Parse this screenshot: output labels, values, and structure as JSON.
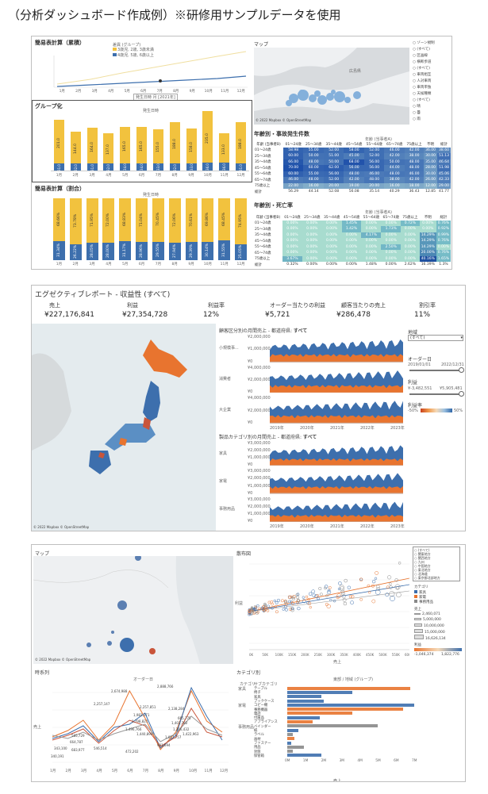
{
  "page": {
    "title": "（分析ダッシュボード作成例）※研修用サンプルデータを使用"
  },
  "p1": {
    "line_title": "簡易表計算（累積）",
    "line_legend_title": "差異 (グループ)",
    "line_legend": [
      "3歳児, 2歳, 3歳未満",
      "4歳児, 5歳, 6歳以上"
    ],
    "line_months": [
      "1月",
      "2月",
      "3月",
      "4月",
      "5月",
      "6月",
      "7月",
      "8月",
      "9月",
      "10月",
      "11月",
      "12月"
    ],
    "line_xlabel": "発生日時 月 [2021年]",
    "group_title": "グループ化",
    "group_axis": "発生日時",
    "bar_top": [
      201.0,
      144.0,
      164.0,
      137.0,
      165.0,
      165.0,
      155.0,
      188.0,
      158.0,
      235.0,
      133.0,
      188.0
    ],
    "bar_bottom": [
      31.0,
      32.0,
      31.0,
      32.0,
      34.0,
      34.0,
      33.0,
      32.0,
      33.0,
      36.0,
      36.0,
      31.0
    ],
    "pct_title": "簡易表計算（割合）",
    "pct_axis": "発生日時",
    "pct_top": [
      "68.66%",
      "73.78%",
      "71.95%",
      "72.00%",
      "68.83%",
      "71.04%",
      "70.45%",
      "72.06%",
      "70.61%",
      "69.86%",
      "68.45%",
      "74.95%"
    ],
    "pct_bottom": [
      "31.34%",
      "26.22%",
      "28.05%",
      "28.00%",
      "31.17%",
      "28.96%",
      "29.55%",
      "27.94%",
      "29.39%",
      "30.14%",
      "31.55%",
      "25.05%"
    ],
    "map_title": "マップ",
    "map_credit": "© 2022 Mapbox © OpenStreetMap",
    "map_place": "広島県",
    "side_items": [
      "ゾーン規制",
      "(すべて)",
      "区画線",
      "横断歩道",
      "(すべて)",
      "車両相互",
      "人対車両",
      "車両単独",
      "天候種類",
      "(すべて)",
      "晴",
      "曇",
      "雨"
    ],
    "table1_title": "年齢別・事故発生件数",
    "table2_title": "年齢別・死亡率",
    "table_colgroup": "年齢 (当事者A)",
    "table_cols": [
      "年齢 (当事者B)",
      "01～24歳",
      "25～34歳",
      "35～44歳",
      "45～54歳",
      "55～64歳",
      "65～74歳",
      "75歳以上",
      "不明",
      "総計"
    ],
    "table_rows": [
      "01～24歳",
      "25～34歳",
      "35～44歳",
      "45～54歳",
      "55～64歳",
      "65～74歳",
      "75歳以上",
      "総計"
    ],
    "table1": [
      [
        "58.98",
        "55.00",
        "52.00",
        "58.00",
        "52.00",
        "46.00",
        "42.00",
        "36.00",
        "38.60"
      ],
      [
        "60.00",
        "50.00",
        "51.00",
        "45.00",
        "52.00",
        "42.00",
        "38.00",
        "30.00",
        "51.13"
      ],
      [
        "66.00",
        "48.00",
        "50.00",
        "68.00",
        "56.00",
        "50.00",
        "48.00",
        "35.00",
        "46.64"
      ],
      [
        "70.00",
        "60.00",
        "62.00",
        "56.00",
        "56.00",
        "44.00",
        "48.00",
        "28.00",
        "51.98"
      ],
      [
        "60.00",
        "55.00",
        "56.00",
        "48.00",
        "46.00",
        "48.00",
        "46.00",
        "30.00",
        "45.06"
      ],
      [
        "46.00",
        "48.00",
        "52.00",
        "42.00",
        "48.00",
        "38.00",
        "42.00",
        "26.00",
        "42.33"
      ],
      [
        "22.00",
        "16.00",
        "20.00",
        "19.00",
        "20.00",
        "16.00",
        "18.00",
        "12.00",
        "29.00"
      ],
      [
        "56.29",
        "44.14",
        "52.08",
        "56.08",
        "35.14",
        "40.29",
        "36.43",
        "12.85",
        "41.77"
      ]
    ],
    "table2": [
      [
        "0.00%",
        "0.00%",
        "0.00%",
        "1.45%",
        "0.00%",
        "0.00%",
        "0.72%",
        "0.00%",
        "0.76%"
      ],
      [
        "0.00%",
        "0.00%",
        "0.00%",
        "1.42%",
        "0.00%",
        "1.73%",
        "0.00%",
        "0.00%",
        "0.92%"
      ],
      [
        "0.00%",
        "0.00%",
        "0.00%",
        "0.00%",
        "4.17%",
        "0.00%",
        "0.00%",
        "14.29%",
        "0.99%"
      ],
      [
        "0.00%",
        "0.00%",
        "0.00%",
        "0.00%",
        "0.00%",
        "0.00%",
        "0.00%",
        "14.29%",
        "0.76%"
      ],
      [
        "0.00%",
        "0.00%",
        "0.00%",
        "0.00%",
        "0.00%",
        "2.50%",
        "0.00%",
        "14.29%",
        "0.00%"
      ],
      [
        "0.00%",
        "0.00%",
        "0.00%",
        "0.00%",
        "0.00%",
        "0.00%",
        "0.00%",
        "20.00%",
        "0.76%"
      ],
      [
        "3.67%",
        "0.00%",
        "0.00%",
        "0.00%",
        "0.00%",
        "0.00%",
        "0.00%",
        "40.16%",
        "1.65%"
      ],
      [
        "0.32%",
        "0.00%",
        "0.00%",
        "0.00%",
        "1.48%",
        "0.00%",
        "2.62%",
        "16.39%",
        "1.3%"
      ]
    ]
  },
  "p2": {
    "title": "エグゼクティブレポート - 収益性 (すべて)",
    "kpis": [
      {
        "label": "売上",
        "value": "¥227,176,841"
      },
      {
        "label": "利益",
        "value": "¥27,354,728"
      },
      {
        "label": "利益率",
        "value": "12%"
      },
      {
        "label": "オーダー当たりの利益",
        "value": "¥5,721"
      },
      {
        "label": "顧客当たりの売上",
        "value": "¥286,478"
      },
      {
        "label": "割引率",
        "value": "11%"
      }
    ],
    "seg_title_prefix": "顧客区分別の月間売上 - 都道府県: ",
    "cat_title_prefix": "製品カテゴリ別の月間売上 - 都道府県: ",
    "selected": "すべて",
    "segs": [
      "小規模事...",
      "消費者",
      "大企業"
    ],
    "cats": [
      "家具",
      "家電",
      "事務用品"
    ],
    "seg_ticks": [
      [
        "¥2,000,000",
        "¥1,000,000",
        "¥0"
      ],
      [
        "¥4,000,000",
        "¥2,000,000",
        "¥0"
      ],
      [
        "¥4,000,000",
        "¥2,000,000",
        "¥0"
      ]
    ],
    "cat_ticks": [
      [
        "¥3,000,000",
        "¥2,000,000",
        "¥1,000,000",
        "¥0"
      ],
      [
        "¥3,000,000",
        "¥2,000,000",
        "¥1,000,000",
        "¥0"
      ],
      [
        "¥3,000,000",
        "¥2,000,000",
        "¥1,000,000",
        "¥0"
      ]
    ],
    "years": [
      "2019年",
      "2020年",
      "2021年",
      "2022年",
      "2023年"
    ],
    "side_region": "地域",
    "side_region_val": "(すべて)",
    "side_order": "オーダー日",
    "side_date_from": "2019/01/01",
    "side_date_to": "2022/12/31",
    "side_profit": "利益",
    "side_profit_from": "¥-3,482,551",
    "side_profit_to": "¥5,905,481",
    "side_margin": "利益率",
    "side_margin_from": "-50%",
    "side_margin_to": "50%",
    "map_credit": "© 2022 Mapbox © OpenStreetMap"
  },
  "p3": {
    "map_title": "マップ",
    "map_credit": "© 2022 Mapbox © OpenStreetMap",
    "scatter_title": "散布図",
    "scatter_xlabel": "売上",
    "scatter_ylabel": "利益",
    "scatter_xticks": [
      "0K",
      "50K",
      "100K",
      "150K",
      "200K",
      "250K",
      "300K",
      "350K",
      "400K",
      "450K",
      "500K",
      "550K",
      "600K"
    ],
    "legend_items": [
      "(すべて)",
      "関東地方",
      "関西地方",
      "九州",
      "中国地方",
      "東北地方",
      "北海道",
      "東京都北部地方"
    ],
    "legend_cat_title": "カテゴリ",
    "legend_cats": [
      "家具",
      "家電",
      "事務用品"
    ],
    "legend_size_title": "売上",
    "legend_sizes": [
      "2,460,071",
      "5,000,000",
      "10,000,000",
      "15,000,000",
      "16,626,134"
    ],
    "legend_profit_title": "利益",
    "legend_profit_from": "-1,046,374",
    "legend_profit_to": "1,822,776",
    "ts_title": "時系列",
    "ts_axis": "オーダー日",
    "ts_ylabel": "売上",
    "ts_xticks": [
      "1月",
      "2月",
      "3月",
      "4月",
      "5月",
      "6月",
      "7月",
      "8月",
      "9月",
      "10月",
      "11月",
      "12月"
    ],
    "ts_labels": [
      "2,674,988",
      "2,888,766",
      "2,257,147",
      "2,257,851",
      "2,138,284",
      "1,982,271",
      "1,798,821",
      "1,496,766",
      "1,440,899",
      "1,401,782",
      "1,206,432",
      "1,017,757",
      "991,694",
      "472,202",
      "546,514",
      "585,729",
      "664,787",
      "343,100",
      "683,977",
      "340,191",
      "665,775",
      "1,422,963"
    ],
    "cat_title": "カテゴリ別",
    "cat_header": "東部 / 地域 (グループ)",
    "cat_cols": [
      "カテゴリ",
      "サブカテゴリ"
    ],
    "cat_groups": [
      "家具",
      "家電",
      "事務用品"
    ],
    "cat_subs": [
      "テーブル",
      "椅子",
      "家具",
      "ブックケース",
      "コピー機",
      "事務機器",
      "電話",
      "付属品",
      "アプライアンス",
      "バインダー",
      "紙",
      "ラベル",
      "画材",
      "ファスナー",
      "用品",
      "封筒",
      "保管箱"
    ],
    "cat_xticks": [
      "0M",
      "1M",
      "2M",
      "3M",
      "4M",
      "5M",
      "6M",
      "7M"
    ],
    "cat_xlabel": "売上"
  },
  "colors": {
    "yellow": "#f2c23e",
    "blue": "#3d6fad",
    "orange": "#e8742f",
    "teal": "#56b4b8"
  }
}
